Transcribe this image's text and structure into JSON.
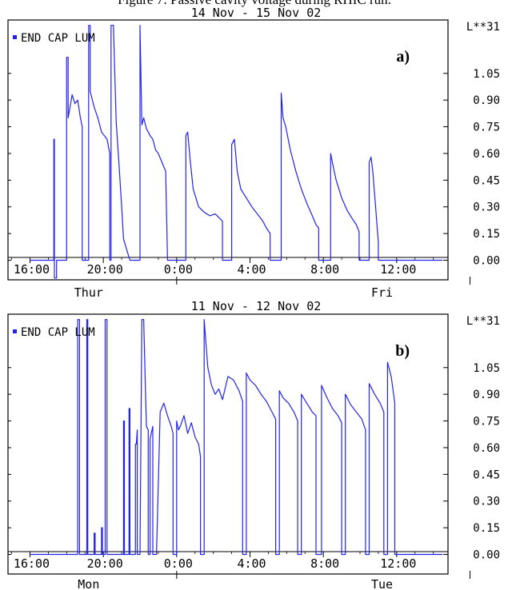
{
  "figure_caption": "Figure 7: Passive cavity voltage during RHIC run.",
  "chart_data": [
    {
      "type": "line",
      "panel_label": "a)",
      "title": "14 Nov - 15 Nov  02",
      "unit_label": "L**31",
      "legend": "END CAP LUM",
      "legend_placement": "top-left",
      "line_color": "#2222ee",
      "grid": false,
      "x_unit": "hours since 16:00 (first day)",
      "xlim": [
        -1.2,
        22.8
      ],
      "ylim": [
        -0.11,
        1.35
      ],
      "y_ticks": [
        "0.00",
        "0.15",
        "0.30",
        "0.45",
        "0.60",
        "0.75",
        "0.90",
        "1.05"
      ],
      "y_tick_values": [
        0,
        0.15,
        0.3,
        0.45,
        0.6,
        0.75,
        0.9,
        1.05
      ],
      "x_tick_labels": [
        "16:00",
        "20:00",
        "0:00",
        "4:00",
        "8:00",
        "12:00"
      ],
      "day_labels": [
        "Thur",
        "Fri"
      ],
      "series": [
        {
          "x": [
            0,
            1.3,
            1.3,
            1.33,
            1.33,
            1.45,
            1.45,
            2.0,
            2.0,
            2.08,
            2.08,
            2.3,
            2.45,
            2.6,
            2.75,
            2.85,
            2.85,
            3.2,
            3.2,
            3.28,
            3.28,
            3.5,
            3.7,
            3.9,
            4.2,
            4.35,
            4.35,
            4.42,
            4.42,
            4.55,
            4.7,
            4.85,
            5.0,
            5.1,
            5.3,
            5.45,
            5.5,
            6.0,
            6.0,
            6.1,
            6.2,
            6.35,
            6.55,
            6.7,
            6.85,
            7.0,
            7.2,
            7.4,
            7.5,
            7.5,
            8.5,
            8.5,
            8.6,
            8.75,
            8.9,
            9.2,
            9.5,
            9.8,
            10.1,
            10.3,
            10.5,
            10.5,
            11.0,
            11.0,
            11.15,
            11.3,
            11.5,
            11.8,
            12.1,
            12.4,
            12.7,
            12.9,
            13.1,
            13.1,
            13.7,
            13.7,
            13.8,
            13.95,
            14.2,
            14.5,
            14.8,
            15.1,
            15.4,
            15.6,
            15.75,
            15.75,
            16.4,
            16.4,
            16.55,
            16.7,
            17.0,
            17.3,
            17.6,
            17.8,
            17.95,
            17.95,
            18.5,
            18.5,
            18.6,
            18.7,
            18.85,
            19.0,
            19.0,
            20.0,
            20.0,
            22.5
          ],
          "y": [
            0,
            0,
            0.68,
            0.68,
            -0.1,
            -0.1,
            0,
            0,
            1.14,
            1.14,
            0.8,
            0.93,
            0.88,
            0.9,
            0.8,
            0.75,
            0,
            0,
            1.32,
            1.32,
            0.95,
            0.86,
            0.8,
            0.72,
            0.68,
            0.6,
            0,
            0,
            1.32,
            1.32,
            0.78,
            0.55,
            0.3,
            0.12,
            0.05,
            0.0,
            0,
            0,
            1.32,
            0.76,
            0.8,
            0.74,
            0.7,
            0.68,
            0.62,
            0.6,
            0.55,
            0.5,
            0.0,
            0,
            0,
            0.7,
            0.72,
            0.55,
            0.4,
            0.3,
            0.27,
            0.25,
            0.26,
            0.24,
            0.22,
            0,
            0,
            0.65,
            0.68,
            0.5,
            0.4,
            0.35,
            0.3,
            0.26,
            0.22,
            0.18,
            0.15,
            0,
            0,
            0.94,
            0.8,
            0.75,
            0.62,
            0.5,
            0.4,
            0.32,
            0.25,
            0.2,
            0.18,
            0,
            0,
            0.6,
            0.52,
            0.45,
            0.35,
            0.28,
            0.23,
            0.2,
            0.16,
            0,
            0,
            0.55,
            0.58,
            0.5,
            0.3,
            0.1,
            0,
            0,
            0,
            0
          ]
        }
      ]
    },
    {
      "type": "line",
      "panel_label": "b)",
      "title": "11 Nov - 12 Nov  02",
      "unit_label": "L**31",
      "legend": "END CAP LUM",
      "legend_placement": "top-left",
      "line_color": "#2222ee",
      "grid": false,
      "x_unit": "hours since 16:00 (first day)",
      "xlim": [
        -1.2,
        22.8
      ],
      "ylim": [
        -0.11,
        1.35
      ],
      "y_ticks": [
        "0.00",
        "0.15",
        "0.30",
        "0.45",
        "0.60",
        "0.75",
        "0.90",
        "1.05"
      ],
      "y_tick_values": [
        0,
        0.15,
        0.3,
        0.45,
        0.6,
        0.75,
        0.9,
        1.05
      ],
      "x_tick_labels": [
        "16:00",
        "20:00",
        "0:00",
        "4:00",
        "8:00",
        "12:00"
      ],
      "day_labels": [
        "Mon",
        "Tue"
      ],
      "series": [
        {
          "x": [
            0,
            2.6,
            2.6,
            2.7,
            2.7,
            3.1,
            3.1,
            3.15,
            3.15,
            3.5,
            3.5,
            3.55,
            3.55,
            3.9,
            3.9,
            3.95,
            3.95,
            4.1,
            4.1,
            4.2,
            4.2,
            5.1,
            5.1,
            5.15,
            5.15,
            5.4,
            5.4,
            5.45,
            5.45,
            5.75,
            5.75,
            5.8,
            5.85,
            5.85,
            6.0,
            6.1,
            6.2,
            6.35,
            6.45,
            6.45,
            6.55,
            6.55,
            6.7,
            6.7,
            6.9,
            7.1,
            7.3,
            7.5,
            7.7,
            7.8,
            7.8,
            8.0,
            8.0,
            8.1,
            8.2,
            8.4,
            8.6,
            8.8,
            9.0,
            9.2,
            9.3,
            9.3,
            9.5,
            9.5,
            9.7,
            9.9,
            10.1,
            10.3,
            10.5,
            10.8,
            11.1,
            11.4,
            11.6,
            11.6,
            11.8,
            11.8,
            12.0,
            12.3,
            12.6,
            12.9,
            13.2,
            13.4,
            13.4,
            13.6,
            13.6,
            13.8,
            14.1,
            14.4,
            14.6,
            14.6,
            14.8,
            14.8,
            15.1,
            15.4,
            15.6,
            15.6,
            15.9,
            15.9,
            16.2,
            16.5,
            16.8,
            17.0,
            17.0,
            17.2,
            17.2,
            17.5,
            17.8,
            18.1,
            18.3,
            18.3,
            18.5,
            18.5,
            18.8,
            19.1,
            19.3,
            19.3,
            19.5,
            19.5,
            19.7,
            19.9,
            19.9,
            22.5
          ],
          "y": [
            0,
            0,
            1.32,
            1.32,
            0,
            0,
            1.32,
            1.32,
            0,
            0,
            0.12,
            0.12,
            0,
            0,
            0.15,
            0.15,
            0,
            0,
            1.32,
            1.32,
            0,
            0,
            0.75,
            0.75,
            0,
            0,
            0.82,
            0.82,
            0,
            0,
            0.62,
            0.62,
            0.7,
            0,
            0,
            1.32,
            1.32,
            0.72,
            0.7,
            0,
            0,
            0.65,
            0.72,
            0,
            0,
            0.8,
            0.85,
            0.78,
            0.72,
            0.68,
            0,
            0,
            0.75,
            0.7,
            0.72,
            0.78,
            0.68,
            0.74,
            0.66,
            0.62,
            0.55,
            0,
            0,
            1.32,
            1.05,
            0.95,
            0.9,
            0.93,
            0.87,
            1.0,
            0.98,
            0.92,
            0.86,
            0,
            0,
            1.02,
            0.98,
            0.95,
            0.9,
            0.86,
            0.8,
            0.76,
            0,
            0,
            0.92,
            0.88,
            0.85,
            0.8,
            0.75,
            0,
            0,
            0.9,
            0.85,
            0.8,
            0.78,
            0,
            0,
            0.95,
            0.88,
            0.82,
            0.78,
            0.74,
            0,
            0,
            0.9,
            0.84,
            0.8,
            0.76,
            0.7,
            0,
            0,
            0.96,
            0.9,
            0.85,
            0.8,
            0,
            0,
            1.08,
            1.0,
            0.85,
            0,
            0
          ]
        }
      ]
    }
  ]
}
